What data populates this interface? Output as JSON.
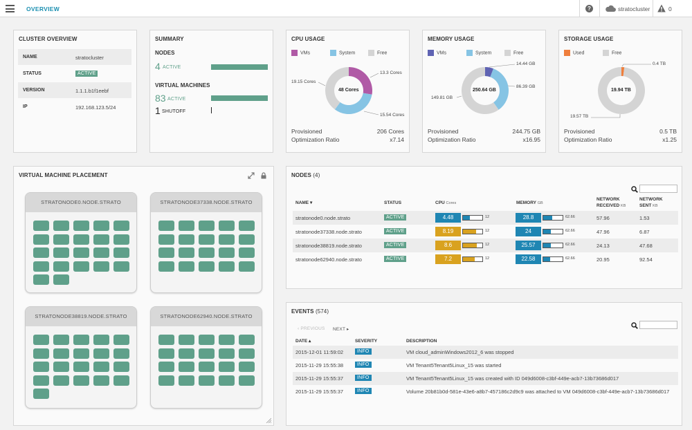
{
  "header": {
    "title": "OVERVIEW",
    "cluster_name": "stratocluster",
    "alert_count": "0"
  },
  "cluster_overview": {
    "title": "CLUSTER OVERVIEW",
    "rows": [
      {
        "key": "NAME",
        "value": "stratocluster"
      },
      {
        "key": "STATUS",
        "value": "ACTIVE"
      },
      {
        "key": "VERSION",
        "value": "1.1.1.b1f1eebf"
      },
      {
        "key": "IP",
        "value": "192.168.123.5/24"
      }
    ]
  },
  "summary": {
    "title": "SUMMARY",
    "nodes_label": "NODES",
    "nodes_count": "4",
    "nodes_status": "ACTIVE",
    "vms_label": "VIRTUAL MACHINES",
    "vms_active_count": "83",
    "vms_active_status": "ACTIVE",
    "vms_shutoff_count": "1",
    "vms_shutoff_status": "SHUTOFF"
  },
  "cpu_usage": {
    "title": "CPU USAGE",
    "legend": [
      {
        "label": "VMs",
        "color": "#b05aa6"
      },
      {
        "label": "System",
        "color": "#86c4e4"
      },
      {
        "label": "Free",
        "color": "#d4d4d4"
      }
    ],
    "center": "48 Cores",
    "slices": [
      13.3,
      15.54,
      19.15
    ],
    "labels": [
      "13.3 Cores",
      "15.54 Cores",
      "19.15 Cores"
    ],
    "provisioned_label": "Provisioned",
    "provisioned_value": "206 Cores",
    "ratio_label": "Optimization Ratio",
    "ratio_value": "x7.14"
  },
  "memory_usage": {
    "title": "MEMORY USAGE",
    "legend": [
      {
        "label": "VMs",
        "color": "#5f63b3"
      },
      {
        "label": "System",
        "color": "#86c4e4"
      },
      {
        "label": "Free",
        "color": "#d4d4d4"
      }
    ],
    "center": "250.64 GB",
    "slices": [
      14.44,
      86.39,
      149.81
    ],
    "labels": [
      "14.44 GB",
      "86.39 GB",
      "149.81 GB"
    ],
    "provisioned_label": "Provisioned",
    "provisioned_value": "244.75 GB",
    "ratio_label": "Optimization Ratio",
    "ratio_value": "x16.95"
  },
  "storage_usage": {
    "title": "STORAGE USAGE",
    "legend": [
      {
        "label": "Used",
        "color": "#ef7f3d"
      },
      {
        "label": "Free",
        "color": "#d4d4d4"
      }
    ],
    "center": "19.94 TB",
    "slices": [
      0.4,
      19.57
    ],
    "labels": [
      "0.4 TB",
      "19.57 TB"
    ],
    "provisioned_label": "Provisioned",
    "provisioned_value": "0.5 TB",
    "ratio_label": "Optimization Ratio",
    "ratio_value": "x1.25"
  },
  "vm_placement": {
    "title": "VIRTUAL MACHINE PLACEMENT",
    "nodes": [
      {
        "name": "STRATONODE0.NODE.STRATO",
        "vm_count": 22
      },
      {
        "name": "STRATONODE37338.NODE.STRATO",
        "vm_count": 20
      },
      {
        "name": "STRATONODE38819.NODE.STRATO",
        "vm_count": 21
      },
      {
        "name": "STRATONODE62940.NODE.STRATO",
        "vm_count": 20
      }
    ]
  },
  "nodes_table": {
    "title": "NODES",
    "count": "(4)",
    "headers": {
      "name": "NAME",
      "status": "STATUS",
      "cpu": "CPU",
      "cpu_unit": "Cores",
      "memory": "MEMORY",
      "memory_unit": "GB",
      "net_rx": "NETWORK",
      "net_rx2": "RECEIVED",
      "net_rx_unit": "KB",
      "net_tx": "NETWORK",
      "net_tx2": "SENT",
      "net_tx_unit": "KB"
    },
    "rows": [
      {
        "name": "stratonode0.node.strato",
        "status": "ACTIVE",
        "cpu": "4.48",
        "cpu_max": "12",
        "cpu_frac": 0.37,
        "cpu_color": "#1f86b3",
        "mem": "28.8",
        "mem_max": "62.66",
        "mem_frac": 0.46,
        "rx": "57.96",
        "tx": "1.53"
      },
      {
        "name": "stratonode37338.node.strato",
        "status": "ACTIVE",
        "cpu": "8.19",
        "cpu_max": "12",
        "cpu_frac": 0.68,
        "cpu_color": "#d9a21f",
        "mem": "24",
        "mem_max": "62.66",
        "mem_frac": 0.38,
        "rx": "47.96",
        "tx": "6.87"
      },
      {
        "name": "stratonode38819.node.strato",
        "status": "ACTIVE",
        "cpu": "8.6",
        "cpu_max": "12",
        "cpu_frac": 0.72,
        "cpu_color": "#d9a21f",
        "mem": "25.57",
        "mem_max": "62.66",
        "mem_frac": 0.41,
        "rx": "24.13",
        "tx": "47.68"
      },
      {
        "name": "stratonode62940.node.strato",
        "status": "ACTIVE",
        "cpu": "7.2",
        "cpu_max": "12",
        "cpu_frac": 0.6,
        "cpu_color": "#d9a21f",
        "mem": "22.58",
        "mem_max": "62.66",
        "mem_frac": 0.36,
        "rx": "20.95",
        "tx": "92.54"
      }
    ]
  },
  "events": {
    "title": "EVENTS",
    "count": "(574)",
    "prev_label": "‹ PREVIOUS",
    "next_label": "NEXT ▸",
    "headers": {
      "date": "DATE",
      "severity": "SEVERITY",
      "description": "DESCRIPTION"
    },
    "rows": [
      {
        "date": "2015-12-01 11:59:02",
        "severity": "INFO",
        "description": "VM cloud_adminWindows2012_6 was stopped"
      },
      {
        "date": "2015-11-29 15:55:38",
        "severity": "INFO",
        "description": "VM Tenant5Tenant5Linux_15 was started"
      },
      {
        "date": "2015-11-29 15:55:37",
        "severity": "INFO",
        "description": "VM Tenant5Tenant5Linux_15 was created with ID 049d6008-c3bf-449e-acb7-13b73686d017"
      },
      {
        "date": "2015-11-29 15:55:37",
        "severity": "INFO",
        "description": "Volume 20b81b0d-581e-43e6-a8b7-457186c2d9c9 was attached to VM 049d6008-c3bf-449e-acb7-13b73686d017"
      }
    ]
  }
}
